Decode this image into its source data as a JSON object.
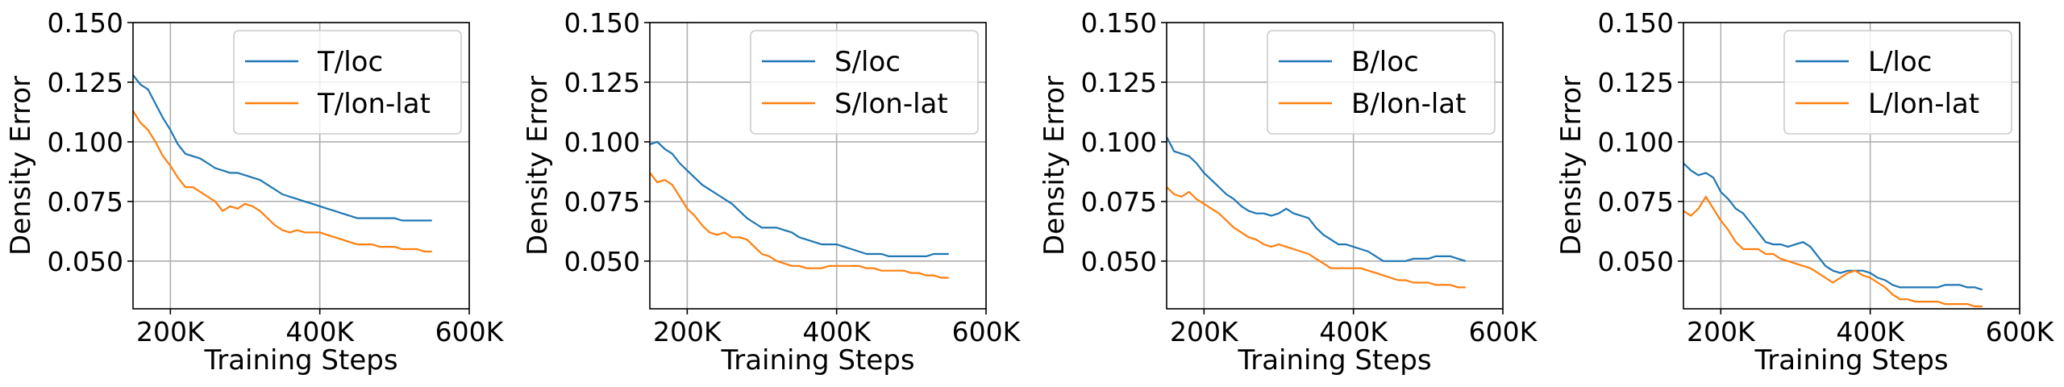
{
  "chart_data": [
    {
      "type": "line",
      "xlabel": "Training Steps",
      "ylabel": "Density Error",
      "xlim": [
        150000,
        600000
      ],
      "ylim": [
        0.03,
        0.15
      ],
      "xticks": [
        200000,
        400000,
        600000
      ],
      "xtick_labels": [
        "200K",
        "400K",
        "600K"
      ],
      "yticks": [
        0.05,
        0.075,
        0.1,
        0.125,
        0.15
      ],
      "ytick_labels": [
        "0.050",
        "0.075",
        "0.100",
        "0.125",
        "0.150"
      ],
      "grid": true,
      "legend_position": "top-right",
      "series": [
        {
          "name": "T/loc",
          "color": "#1f77b4",
          "x": [
            150000,
            160000,
            170000,
            180000,
            190000,
            200000,
            210000,
            220000,
            230000,
            240000,
            250000,
            260000,
            270000,
            280000,
            290000,
            300000,
            310000,
            320000,
            330000,
            340000,
            350000,
            360000,
            370000,
            380000,
            390000,
            400000,
            410000,
            420000,
            430000,
            440000,
            450000,
            460000,
            470000,
            480000,
            490000,
            500000,
            510000,
            520000,
            530000,
            540000,
            550000
          ],
          "values": [
            0.128,
            0.124,
            0.122,
            0.116,
            0.11,
            0.105,
            0.099,
            0.095,
            0.094,
            0.093,
            0.091,
            0.089,
            0.088,
            0.087,
            0.087,
            0.086,
            0.085,
            0.084,
            0.082,
            0.08,
            0.078,
            0.077,
            0.076,
            0.075,
            0.074,
            0.073,
            0.072,
            0.071,
            0.07,
            0.069,
            0.068,
            0.068,
            0.068,
            0.068,
            0.068,
            0.068,
            0.067,
            0.067,
            0.067,
            0.067,
            0.067
          ]
        },
        {
          "name": "T/lon-lat",
          "color": "#ff7f0e",
          "x": [
            150000,
            160000,
            170000,
            180000,
            190000,
            200000,
            210000,
            220000,
            230000,
            240000,
            250000,
            260000,
            270000,
            280000,
            290000,
            300000,
            310000,
            320000,
            330000,
            340000,
            350000,
            360000,
            370000,
            380000,
            390000,
            400000,
            410000,
            420000,
            430000,
            440000,
            450000,
            460000,
            470000,
            480000,
            490000,
            500000,
            510000,
            520000,
            530000,
            540000,
            550000
          ],
          "values": [
            0.113,
            0.108,
            0.105,
            0.1,
            0.094,
            0.09,
            0.085,
            0.081,
            0.081,
            0.079,
            0.077,
            0.075,
            0.071,
            0.073,
            0.072,
            0.074,
            0.073,
            0.071,
            0.068,
            0.065,
            0.063,
            0.062,
            0.063,
            0.062,
            0.062,
            0.062,
            0.061,
            0.06,
            0.059,
            0.058,
            0.057,
            0.057,
            0.057,
            0.056,
            0.056,
            0.056,
            0.055,
            0.055,
            0.055,
            0.054,
            0.054
          ]
        }
      ]
    },
    {
      "type": "line",
      "xlabel": "Training Steps",
      "ylabel": "Density Error",
      "xlim": [
        150000,
        600000
      ],
      "ylim": [
        0.03,
        0.15
      ],
      "xticks": [
        200000,
        400000,
        600000
      ],
      "xtick_labels": [
        "200K",
        "400K",
        "600K"
      ],
      "yticks": [
        0.05,
        0.075,
        0.1,
        0.125,
        0.15
      ],
      "ytick_labels": [
        "0.050",
        "0.075",
        "0.100",
        "0.125",
        "0.150"
      ],
      "grid": true,
      "legend_position": "top-right",
      "series": [
        {
          "name": "S/loc",
          "color": "#1f77b4",
          "x": [
            150000,
            160000,
            170000,
            180000,
            190000,
            200000,
            210000,
            220000,
            230000,
            240000,
            250000,
            260000,
            270000,
            280000,
            290000,
            300000,
            310000,
            320000,
            330000,
            340000,
            350000,
            360000,
            370000,
            380000,
            390000,
            400000,
            410000,
            420000,
            430000,
            440000,
            450000,
            460000,
            470000,
            480000,
            490000,
            500000,
            510000,
            520000,
            530000,
            540000,
            550000
          ],
          "values": [
            0.099,
            0.1,
            0.097,
            0.095,
            0.091,
            0.088,
            0.085,
            0.082,
            0.08,
            0.078,
            0.076,
            0.074,
            0.071,
            0.068,
            0.066,
            0.064,
            0.064,
            0.064,
            0.063,
            0.062,
            0.06,
            0.059,
            0.058,
            0.057,
            0.057,
            0.057,
            0.056,
            0.055,
            0.054,
            0.053,
            0.053,
            0.053,
            0.052,
            0.052,
            0.052,
            0.052,
            0.052,
            0.052,
            0.053,
            0.053,
            0.053
          ]
        },
        {
          "name": "S/lon-lat",
          "color": "#ff7f0e",
          "x": [
            150000,
            160000,
            170000,
            180000,
            190000,
            200000,
            210000,
            220000,
            230000,
            240000,
            250000,
            260000,
            270000,
            280000,
            290000,
            300000,
            310000,
            320000,
            330000,
            340000,
            350000,
            360000,
            370000,
            380000,
            390000,
            400000,
            410000,
            420000,
            430000,
            440000,
            450000,
            460000,
            470000,
            480000,
            490000,
            500000,
            510000,
            520000,
            530000,
            540000,
            550000
          ],
          "values": [
            0.087,
            0.083,
            0.084,
            0.082,
            0.077,
            0.072,
            0.069,
            0.065,
            0.062,
            0.061,
            0.062,
            0.06,
            0.06,
            0.059,
            0.056,
            0.053,
            0.052,
            0.05,
            0.049,
            0.048,
            0.048,
            0.047,
            0.047,
            0.047,
            0.048,
            0.048,
            0.048,
            0.048,
            0.048,
            0.047,
            0.047,
            0.046,
            0.046,
            0.046,
            0.046,
            0.045,
            0.045,
            0.044,
            0.044,
            0.043,
            0.043
          ]
        }
      ]
    },
    {
      "type": "line",
      "xlabel": "Training Steps",
      "ylabel": "Density Error",
      "xlim": [
        150000,
        600000
      ],
      "ylim": [
        0.03,
        0.15
      ],
      "xticks": [
        200000,
        400000,
        600000
      ],
      "xtick_labels": [
        "200K",
        "400K",
        "600K"
      ],
      "yticks": [
        0.05,
        0.075,
        0.1,
        0.125,
        0.15
      ],
      "ytick_labels": [
        "0.050",
        "0.075",
        "0.100",
        "0.125",
        "0.150"
      ],
      "grid": true,
      "legend_position": "top-right",
      "series": [
        {
          "name": "B/loc",
          "color": "#1f77b4",
          "x": [
            150000,
            160000,
            170000,
            180000,
            190000,
            200000,
            210000,
            220000,
            230000,
            240000,
            250000,
            260000,
            270000,
            280000,
            290000,
            300000,
            310000,
            320000,
            330000,
            340000,
            350000,
            360000,
            370000,
            380000,
            390000,
            400000,
            410000,
            420000,
            430000,
            440000,
            450000,
            460000,
            470000,
            480000,
            490000,
            500000,
            510000,
            520000,
            530000,
            540000,
            550000
          ],
          "values": [
            0.102,
            0.096,
            0.095,
            0.094,
            0.091,
            0.087,
            0.084,
            0.081,
            0.078,
            0.076,
            0.073,
            0.071,
            0.07,
            0.07,
            0.069,
            0.07,
            0.072,
            0.07,
            0.069,
            0.068,
            0.064,
            0.061,
            0.059,
            0.057,
            0.057,
            0.056,
            0.055,
            0.054,
            0.052,
            0.05,
            0.05,
            0.05,
            0.05,
            0.051,
            0.051,
            0.051,
            0.052,
            0.052,
            0.052,
            0.051,
            0.05
          ]
        },
        {
          "name": "B/lon-lat",
          "color": "#ff7f0e",
          "x": [
            150000,
            160000,
            170000,
            180000,
            190000,
            200000,
            210000,
            220000,
            230000,
            240000,
            250000,
            260000,
            270000,
            280000,
            290000,
            300000,
            310000,
            320000,
            330000,
            340000,
            350000,
            360000,
            370000,
            380000,
            390000,
            400000,
            410000,
            420000,
            430000,
            440000,
            450000,
            460000,
            470000,
            480000,
            490000,
            500000,
            510000,
            520000,
            530000,
            540000,
            550000
          ],
          "values": [
            0.081,
            0.078,
            0.077,
            0.079,
            0.076,
            0.074,
            0.072,
            0.07,
            0.067,
            0.064,
            0.062,
            0.06,
            0.059,
            0.057,
            0.056,
            0.057,
            0.056,
            0.055,
            0.054,
            0.053,
            0.051,
            0.049,
            0.047,
            0.047,
            0.047,
            0.047,
            0.047,
            0.046,
            0.045,
            0.044,
            0.043,
            0.042,
            0.042,
            0.041,
            0.041,
            0.041,
            0.04,
            0.04,
            0.04,
            0.039,
            0.039
          ]
        }
      ]
    },
    {
      "type": "line",
      "xlabel": "Training Steps",
      "ylabel": "Density Error",
      "xlim": [
        150000,
        600000
      ],
      "ylim": [
        0.03,
        0.15
      ],
      "xticks": [
        200000,
        400000,
        600000
      ],
      "xtick_labels": [
        "200K",
        "400K",
        "600K"
      ],
      "yticks": [
        0.05,
        0.075,
        0.1,
        0.125,
        0.15
      ],
      "ytick_labels": [
        "0.050",
        "0.075",
        "0.100",
        "0.125",
        "0.150"
      ],
      "grid": true,
      "legend_position": "top-right",
      "series": [
        {
          "name": "L/loc",
          "color": "#1f77b4",
          "x": [
            150000,
            160000,
            170000,
            180000,
            190000,
            200000,
            210000,
            220000,
            230000,
            240000,
            250000,
            260000,
            270000,
            280000,
            290000,
            300000,
            310000,
            320000,
            330000,
            340000,
            350000,
            360000,
            370000,
            380000,
            390000,
            400000,
            410000,
            420000,
            430000,
            440000,
            450000,
            460000,
            470000,
            480000,
            490000,
            500000,
            510000,
            520000,
            530000,
            540000,
            550000
          ],
          "values": [
            0.091,
            0.088,
            0.086,
            0.087,
            0.085,
            0.079,
            0.076,
            0.072,
            0.07,
            0.066,
            0.062,
            0.058,
            0.057,
            0.057,
            0.056,
            0.057,
            0.058,
            0.056,
            0.052,
            0.048,
            0.046,
            0.045,
            0.046,
            0.046,
            0.046,
            0.045,
            0.043,
            0.042,
            0.04,
            0.039,
            0.039,
            0.039,
            0.039,
            0.039,
            0.039,
            0.04,
            0.04,
            0.04,
            0.039,
            0.039,
            0.038
          ]
        },
        {
          "name": "L/lon-lat",
          "color": "#ff7f0e",
          "x": [
            150000,
            160000,
            170000,
            180000,
            190000,
            200000,
            210000,
            220000,
            230000,
            240000,
            250000,
            260000,
            270000,
            280000,
            290000,
            300000,
            310000,
            320000,
            330000,
            340000,
            350000,
            360000,
            370000,
            380000,
            390000,
            400000,
            410000,
            420000,
            430000,
            440000,
            450000,
            460000,
            470000,
            480000,
            490000,
            500000,
            510000,
            520000,
            530000,
            540000,
            550000
          ],
          "values": [
            0.071,
            0.069,
            0.072,
            0.077,
            0.072,
            0.067,
            0.063,
            0.058,
            0.055,
            0.055,
            0.055,
            0.053,
            0.053,
            0.051,
            0.05,
            0.049,
            0.048,
            0.047,
            0.045,
            0.043,
            0.041,
            0.043,
            0.045,
            0.046,
            0.044,
            0.043,
            0.041,
            0.039,
            0.036,
            0.034,
            0.034,
            0.033,
            0.033,
            0.033,
            0.033,
            0.032,
            0.032,
            0.032,
            0.032,
            0.031,
            0.031
          ]
        }
      ]
    }
  ]
}
